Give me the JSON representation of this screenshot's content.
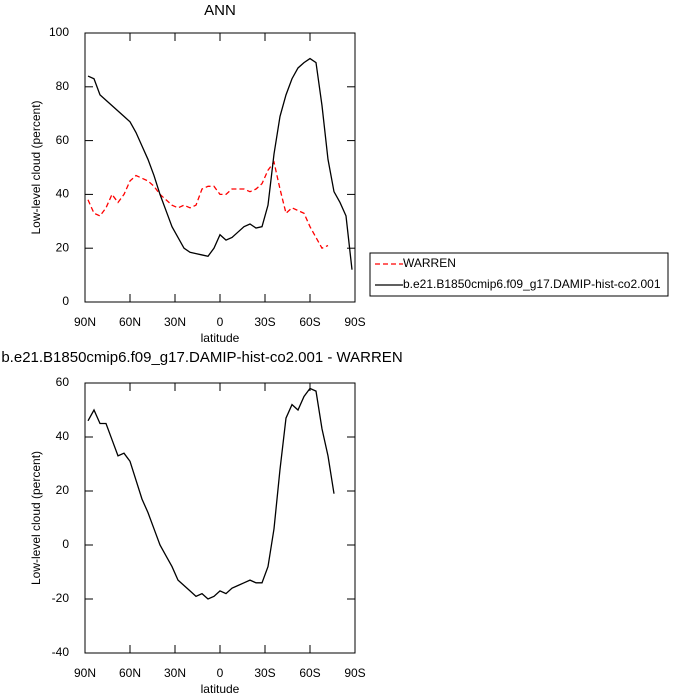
{
  "chart_data": [
    {
      "type": "line",
      "title": "ANN",
      "xlabel": "latitude",
      "ylabel": "Low-level cloud (percent)",
      "x": [
        88,
        84,
        80,
        76,
        72,
        68,
        64,
        60,
        56,
        52,
        48,
        44,
        40,
        36,
        32,
        28,
        24,
        20,
        16,
        12,
        8,
        4,
        0,
        -4,
        -8,
        -12,
        -16,
        -20,
        -24,
        -28,
        -32,
        -36,
        -40,
        -44,
        -48,
        -52,
        -56,
        -60,
        -64,
        -68,
        -72,
        -76,
        -80,
        -84,
        -88
      ],
      "series": [
        {
          "name": "WARREN",
          "color": "#ff0000",
          "line_style": "dashed",
          "values": [
            38,
            33,
            32,
            35,
            40,
            37,
            40,
            45,
            47,
            46,
            45,
            43,
            40,
            38,
            36,
            35,
            36,
            35,
            36,
            42,
            43,
            43,
            40,
            40,
            42,
            42,
            42,
            41,
            42,
            44,
            49,
            52,
            42,
            33,
            35,
            34,
            33,
            28,
            24,
            20,
            21,
            null,
            null,
            null,
            null
          ]
        },
        {
          "name": "b.e21.B1850cmip6.f09_g17.DAMIP-hist-co2.001",
          "color": "#000000",
          "line_style": "solid",
          "values": [
            84,
            83,
            77,
            75,
            73,
            71,
            69,
            67,
            63,
            58,
            53,
            47,
            40,
            34,
            28,
            24,
            20,
            18.5,
            18,
            17.5,
            17,
            20,
            25,
            23,
            24,
            26,
            28,
            29,
            27.5,
            28,
            36,
            55,
            69,
            77,
            83,
            87,
            89,
            90.5,
            89,
            73,
            53,
            41,
            37,
            32,
            12
          ]
        }
      ],
      "xlim": [
        90,
        -90
      ],
      "xticks": [
        {
          "value": 90,
          "label": "90N"
        },
        {
          "value": 60,
          "label": "60N"
        },
        {
          "value": 30,
          "label": "30N"
        },
        0,
        {
          "value": -30,
          "label": "30S"
        },
        {
          "value": -60,
          "label": "60S"
        },
        {
          "value": -90,
          "label": "90S"
        }
      ],
      "ylim": [
        0,
        100
      ],
      "yticks": [
        0,
        20,
        40,
        60,
        80,
        100
      ],
      "legend": "outside-right"
    },
    {
      "type": "line",
      "title": "b.e21.B1850cmip6.f09_g17.DAMIP-hist-co2.001 - WARREN",
      "xlabel": "latitude",
      "ylabel": "Low-level cloud (percent)",
      "x": [
        88,
        84,
        80,
        76,
        72,
        68,
        64,
        60,
        56,
        52,
        48,
        44,
        40,
        36,
        32,
        28,
        24,
        20,
        16,
        12,
        8,
        4,
        0,
        -4,
        -8,
        -12,
        -16,
        -20,
        -24,
        -28,
        -32,
        -36,
        -40,
        -44,
        -48,
        -52,
        -56,
        -60,
        -64,
        -68,
        -72,
        -76,
        -80,
        -84,
        -88
      ],
      "series": [
        {
          "color": "#000000",
          "line_style": "solid",
          "values": [
            46,
            50,
            45,
            45,
            39,
            33,
            34,
            31,
            24,
            17,
            12,
            6,
            0,
            -4,
            -8,
            -13,
            -15,
            -17,
            -19,
            -18,
            -20,
            -19,
            -17,
            -18,
            -16,
            -15,
            -14,
            -13,
            -14,
            -14,
            -8,
            6,
            28,
            47,
            52,
            50,
            55,
            58,
            57,
            43,
            33,
            19,
            null,
            null,
            null
          ]
        }
      ],
      "xlim": [
        90,
        -90
      ],
      "xticks": [
        {
          "value": 90,
          "label": "90N"
        },
        {
          "value": 60,
          "label": "60N"
        },
        {
          "value": 30,
          "label": "30N"
        },
        0,
        {
          "value": -30,
          "label": "30S"
        },
        {
          "value": -60,
          "label": "60S"
        },
        {
          "value": -90,
          "label": "90S"
        }
      ],
      "ylim": [
        -40,
        60
      ],
      "yticks": [
        -40,
        -20,
        0,
        20,
        40,
        60
      ]
    }
  ]
}
